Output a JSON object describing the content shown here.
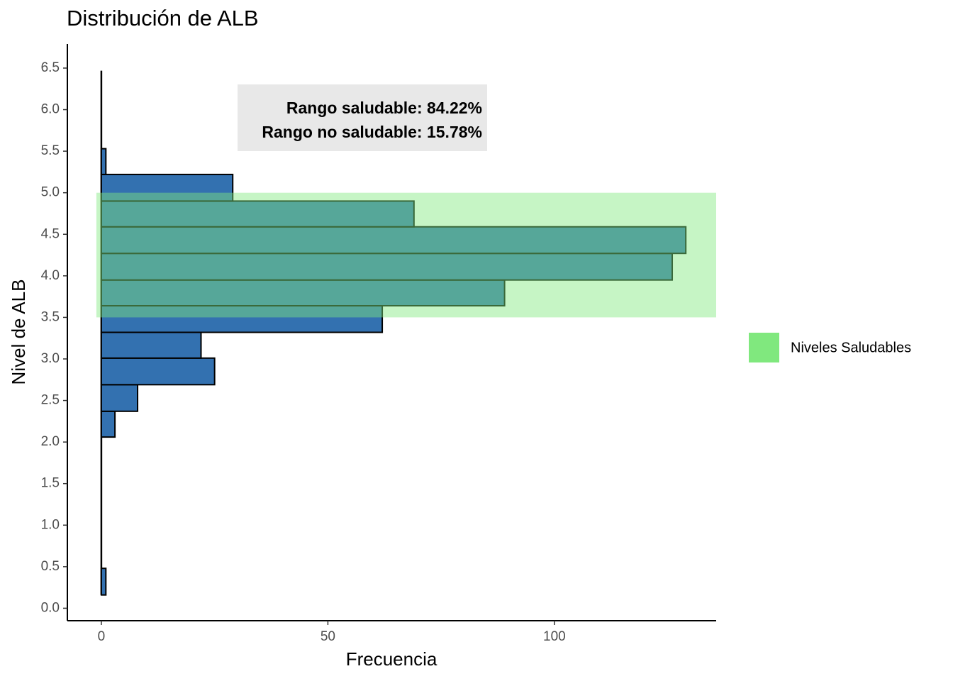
{
  "chart_data": {
    "type": "histogram",
    "orientation": "horizontal",
    "title": "Distribución de ALB",
    "xlabel": "Frecuencia",
    "ylabel": "Nivel de ALB",
    "bins": [
      0.16,
      0.48,
      0.79,
      1.11,
      1.43,
      1.74,
      2.06,
      2.37,
      2.69,
      3.01,
      3.32,
      3.64,
      3.95,
      4.27,
      4.59,
      4.9,
      5.22,
      5.53
    ],
    "values": [
      1,
      0,
      0,
      0,
      0,
      0,
      3,
      8,
      25,
      22,
      62,
      89,
      126,
      129,
      69,
      29,
      1
    ],
    "color": "#3371b0",
    "xlim": [
      -7.5,
      135.7
    ],
    "xticks": [
      0,
      50,
      100
    ],
    "ylim": [
      -0.15,
      6.79
    ],
    "yticks": [
      {
        "value": 0,
        "label": "0.0"
      },
      0.5,
      {
        "value": 1,
        "label": "1.0"
      },
      1.5,
      {
        "value": 2,
        "label": "2.0"
      },
      2.5,
      {
        "value": 3,
        "label": "3.0"
      },
      3.5,
      {
        "value": 4,
        "label": "4.0"
      },
      4.5,
      {
        "value": 5,
        "label": "5.0"
      },
      5.5,
      {
        "value": 6,
        "label": "6.0"
      },
      6.5
    ],
    "healthy_band": {
      "name": "Niveles Saludables",
      "color": "#80e87e",
      "range": [
        3.5,
        5
      ]
    },
    "annotations": [
      "Rango saludable: 84.22%",
      "Rango no saludable: 15.78%"
    ]
  }
}
